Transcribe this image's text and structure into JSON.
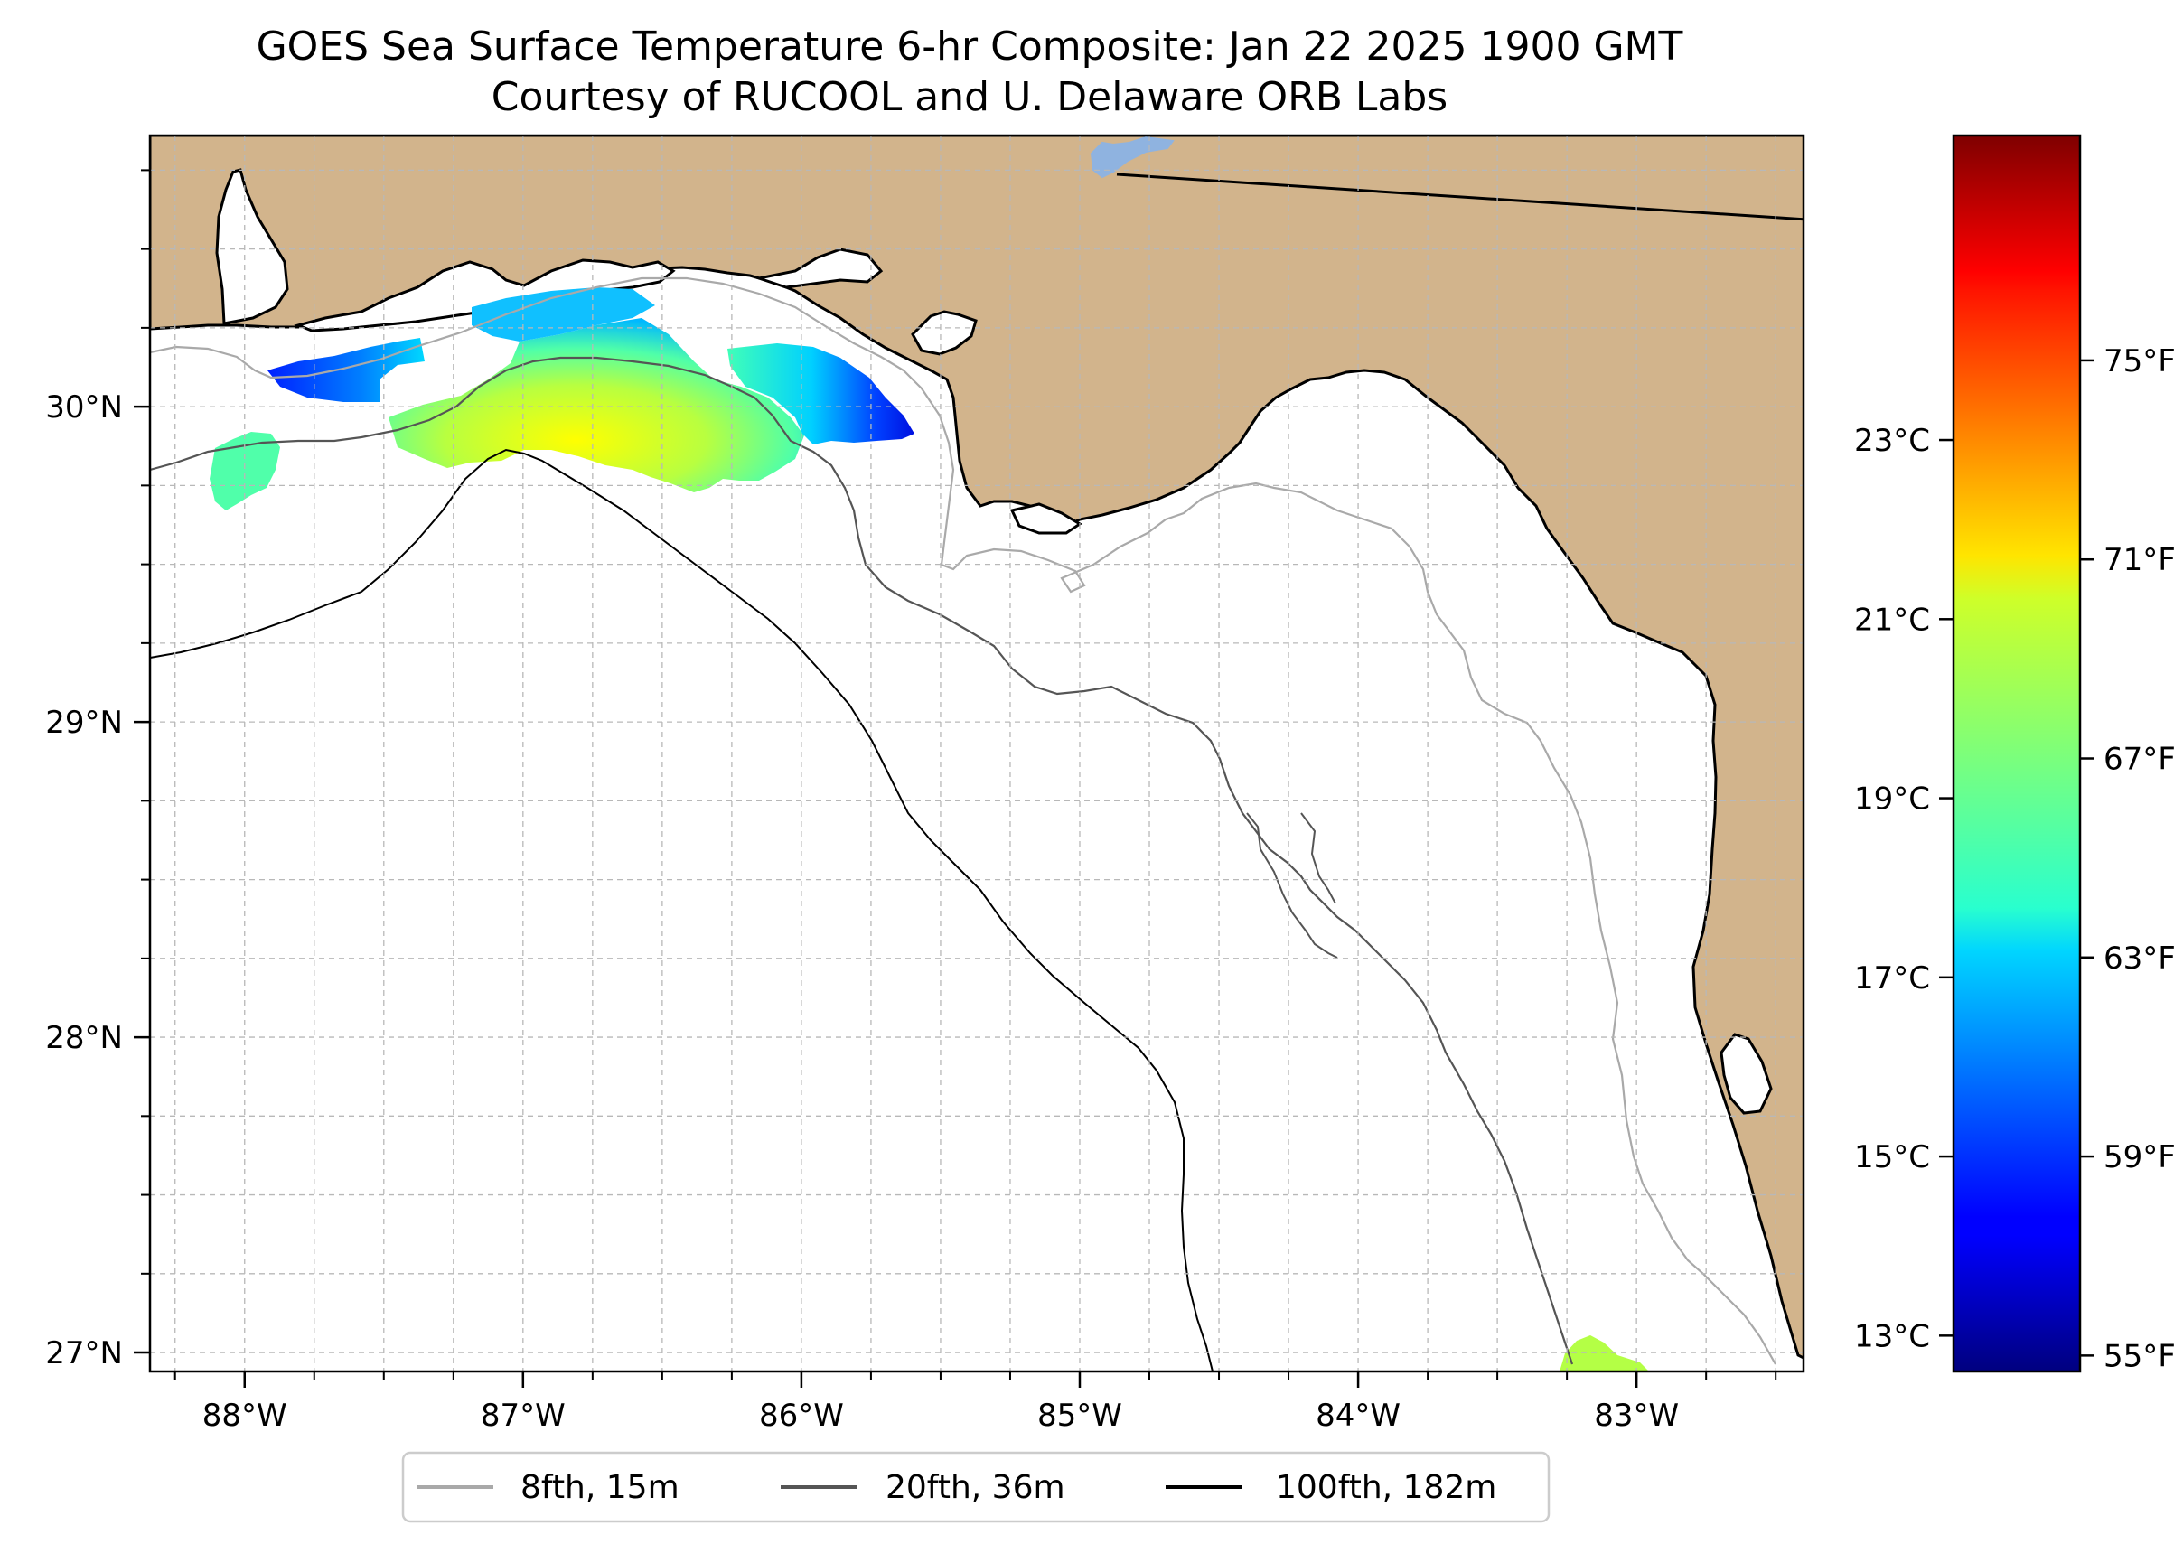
{
  "title": {
    "line1": "GOES Sea Surface Temperature 6-hr Composite: Jan 22 2025 1900 GMT",
    "line2": "Courtesy of RUCOOL and U. Delaware ORB Labs"
  },
  "map": {
    "lon_range": [
      -88.34,
      -82.4
    ],
    "lat_range": [
      26.94,
      30.86
    ],
    "x_ticks": [
      {
        "lon": -88,
        "label": "88°W"
      },
      {
        "lon": -87,
        "label": "87°W"
      },
      {
        "lon": -86,
        "label": "86°W"
      },
      {
        "lon": -85,
        "label": "85°W"
      },
      {
        "lon": -84,
        "label": "84°W"
      },
      {
        "lon": -83,
        "label": "83°W"
      }
    ],
    "y_ticks": [
      {
        "lat": 30,
        "label": "30°N"
      },
      {
        "lat": 29,
        "label": "29°N"
      },
      {
        "lat": 28,
        "label": "28°N"
      },
      {
        "lat": 27,
        "label": "27°N"
      }
    ],
    "grid": true,
    "land_color": "#d2b48c",
    "ocean_color": "#ffffff"
  },
  "colorbar": {
    "colormap": "jet",
    "celsius_range": [
      12.6,
      26.4
    ],
    "celsius_ticks": [
      {
        "value": 13,
        "label": "13°C"
      },
      {
        "value": 15,
        "label": "15°C"
      },
      {
        "value": 17,
        "label": "17°C"
      },
      {
        "value": 19,
        "label": "19°C"
      },
      {
        "value": 21,
        "label": "21°C"
      },
      {
        "value": 23,
        "label": "23°C"
      }
    ],
    "fahrenheit_ticks": [
      {
        "value": 55,
        "label": "55°F"
      },
      {
        "value": 59,
        "label": "59°F"
      },
      {
        "value": 63,
        "label": "63°F"
      },
      {
        "value": 67,
        "label": "67°F"
      },
      {
        "value": 71,
        "label": "71°F"
      },
      {
        "value": 75,
        "label": "75°F"
      }
    ]
  },
  "legend": {
    "items": [
      {
        "label": "8fth, 15m",
        "color": "#a9a9a9"
      },
      {
        "label": "20fth, 36m",
        "color": "#555555"
      },
      {
        "label": "100fth, 182m",
        "color": "#000000"
      }
    ]
  }
}
